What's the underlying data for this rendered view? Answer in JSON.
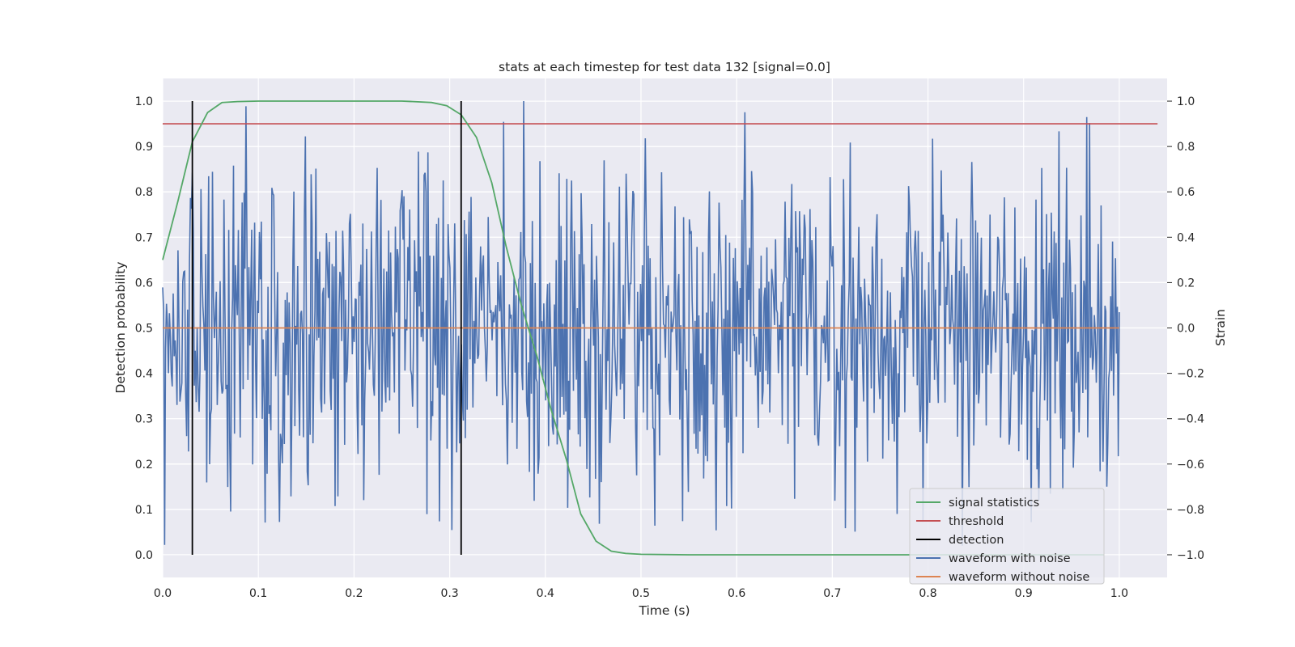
{
  "chart_data": {
    "type": "line",
    "title": "stats at each timestep for test data 132 [signal=0.0]",
    "xlabel": "Time (s)",
    "ylabel_left": "Detection probability",
    "ylabel_right": "Strain",
    "xlim": [
      0.0,
      1.05
    ],
    "ylim_left": [
      -0.05,
      1.05
    ],
    "ylim_right": [
      -1.1,
      1.1
    ],
    "grid": true,
    "legend_position": "lower-right",
    "x_ticks": [
      0.0,
      0.1,
      0.2,
      0.3,
      0.4,
      0.5,
      0.6,
      0.7,
      0.8,
      0.9,
      1.0
    ],
    "x_tick_labels": [
      "0.0",
      "0.1",
      "0.2",
      "0.3",
      "0.4",
      "0.5",
      "0.6",
      "0.7",
      "0.8",
      "0.9",
      "1.0"
    ],
    "y_left_ticks": [
      0.0,
      0.1,
      0.2,
      0.3,
      0.4,
      0.5,
      0.6,
      0.7,
      0.8,
      0.9,
      1.0
    ],
    "y_left_tick_labels": [
      "0.0",
      "0.1",
      "0.2",
      "0.3",
      "0.4",
      "0.5",
      "0.6",
      "0.7",
      "0.8",
      "0.9",
      "1.0"
    ],
    "y_right_ticks": [
      1.0,
      0.8,
      0.6,
      0.4,
      0.2,
      0.0,
      -0.2,
      -0.4,
      -0.6,
      -0.8,
      -1.0
    ],
    "y_right_tick_labels": [
      "1.0",
      "0.8",
      "0.6",
      "0.4",
      "0.2",
      "0.0",
      "−0.2",
      "−0.4",
      "−0.6",
      "−0.8",
      "−1.0"
    ],
    "series": [
      {
        "name": "signal statistics",
        "axis": "left",
        "color": "#55a868",
        "x": [
          0.0,
          0.016,
          0.031,
          0.047,
          0.062,
          0.078,
          0.1,
          0.15,
          0.2,
          0.25,
          0.281,
          0.297,
          0.312,
          0.328,
          0.344,
          0.359,
          0.375,
          0.391,
          0.406,
          0.422,
          0.437,
          0.453,
          0.469,
          0.484,
          0.5,
          0.55,
          0.6,
          0.7,
          0.8,
          0.9,
          0.984
        ],
        "values": [
          0.65,
          0.78,
          0.91,
          0.975,
          0.997,
          0.999,
          1.0,
          1.0,
          1.0,
          1.0,
          0.997,
          0.99,
          0.97,
          0.92,
          0.82,
          0.68,
          0.55,
          0.44,
          0.32,
          0.21,
          0.09,
          0.03,
          0.008,
          0.003,
          0.001,
          0.0,
          0.0,
          0.0,
          0.0,
          0.0,
          0.0
        ]
      },
      {
        "name": "threshold",
        "axis": "left",
        "color": "#c44e52",
        "x": [
          0.0,
          1.04
        ],
        "values": [
          0.95,
          0.95
        ]
      },
      {
        "name": "detection",
        "axis": "left",
        "color": "#000000",
        "type": "vlines",
        "x": [
          0.031,
          0.312
        ],
        "ymin": 0.0,
        "ymax": 1.0
      },
      {
        "name": "waveform with noise",
        "axis": "right",
        "color": "#4c72b0",
        "x_start": 0.0,
        "x_end": 1.0,
        "points": 1000,
        "amplitude_rms": 0.35,
        "approx_max": 1.0,
        "approx_min": -0.98
      },
      {
        "name": "waveform without noise",
        "axis": "right",
        "color": "#dd8452",
        "x": [
          0.0,
          1.0
        ],
        "values": [
          0.0,
          0.0
        ]
      }
    ],
    "legend": [
      "signal statistics",
      "threshold",
      "detection",
      "waveform with noise",
      "waveform without noise"
    ]
  }
}
